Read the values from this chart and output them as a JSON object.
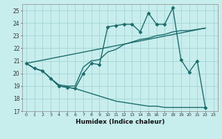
{
  "xlabel": "Humidex (Indice chaleur)",
  "background_color": "#c8eded",
  "grid_color": "#a8d8d8",
  "line_color": "#1a6b6b",
  "xlim": [
    -0.5,
    23.5
  ],
  "ylim": [
    17,
    25.5
  ],
  "yticks": [
    17,
    18,
    19,
    20,
    21,
    22,
    23,
    24,
    25
  ],
  "xticks": [
    0,
    1,
    2,
    3,
    4,
    5,
    6,
    7,
    8,
    9,
    10,
    11,
    12,
    13,
    14,
    15,
    16,
    17,
    18,
    19,
    20,
    21,
    22,
    23
  ],
  "line1_x": [
    0,
    1,
    2,
    3,
    4,
    5,
    6,
    7,
    8,
    9,
    10,
    11,
    12,
    13,
    14,
    15,
    16,
    17,
    18,
    19,
    20,
    21,
    22
  ],
  "line1_y": [
    20.8,
    20.4,
    20.2,
    19.6,
    19.0,
    18.9,
    18.8,
    20.0,
    20.8,
    20.7,
    23.7,
    23.8,
    23.9,
    23.9,
    23.3,
    24.8,
    23.9,
    23.9,
    25.2,
    21.1,
    20.1,
    21.0,
    17.3
  ],
  "line2_x": [
    0,
    1,
    2,
    3,
    4,
    5,
    6,
    7,
    8,
    9,
    10,
    11,
    12,
    13,
    14,
    15,
    16,
    17,
    18,
    19,
    20,
    21,
    22
  ],
  "line2_y": [
    20.8,
    20.4,
    20.2,
    19.6,
    19.0,
    18.9,
    18.8,
    18.6,
    18.4,
    18.2,
    18.0,
    17.8,
    17.7,
    17.6,
    17.5,
    17.4,
    17.4,
    17.3,
    17.3,
    17.3,
    17.3,
    17.3,
    17.3
  ],
  "line3_x": [
    0,
    1,
    2,
    3,
    4,
    5,
    6,
    7,
    8,
    9,
    10,
    11,
    12,
    13,
    14,
    15,
    16,
    17,
    18,
    19,
    20,
    21,
    22
  ],
  "line3_y": [
    20.8,
    20.4,
    20.2,
    19.6,
    19.1,
    19.0,
    19.0,
    20.5,
    21.0,
    21.1,
    21.7,
    21.9,
    22.3,
    22.5,
    22.7,
    22.8,
    23.0,
    23.1,
    23.3,
    23.4,
    23.4,
    23.5,
    23.6
  ],
  "line4_x": [
    0,
    22
  ],
  "line4_y": [
    20.8,
    23.6
  ],
  "marker": "D",
  "marker_size": 2.5,
  "linewidth": 1.0
}
